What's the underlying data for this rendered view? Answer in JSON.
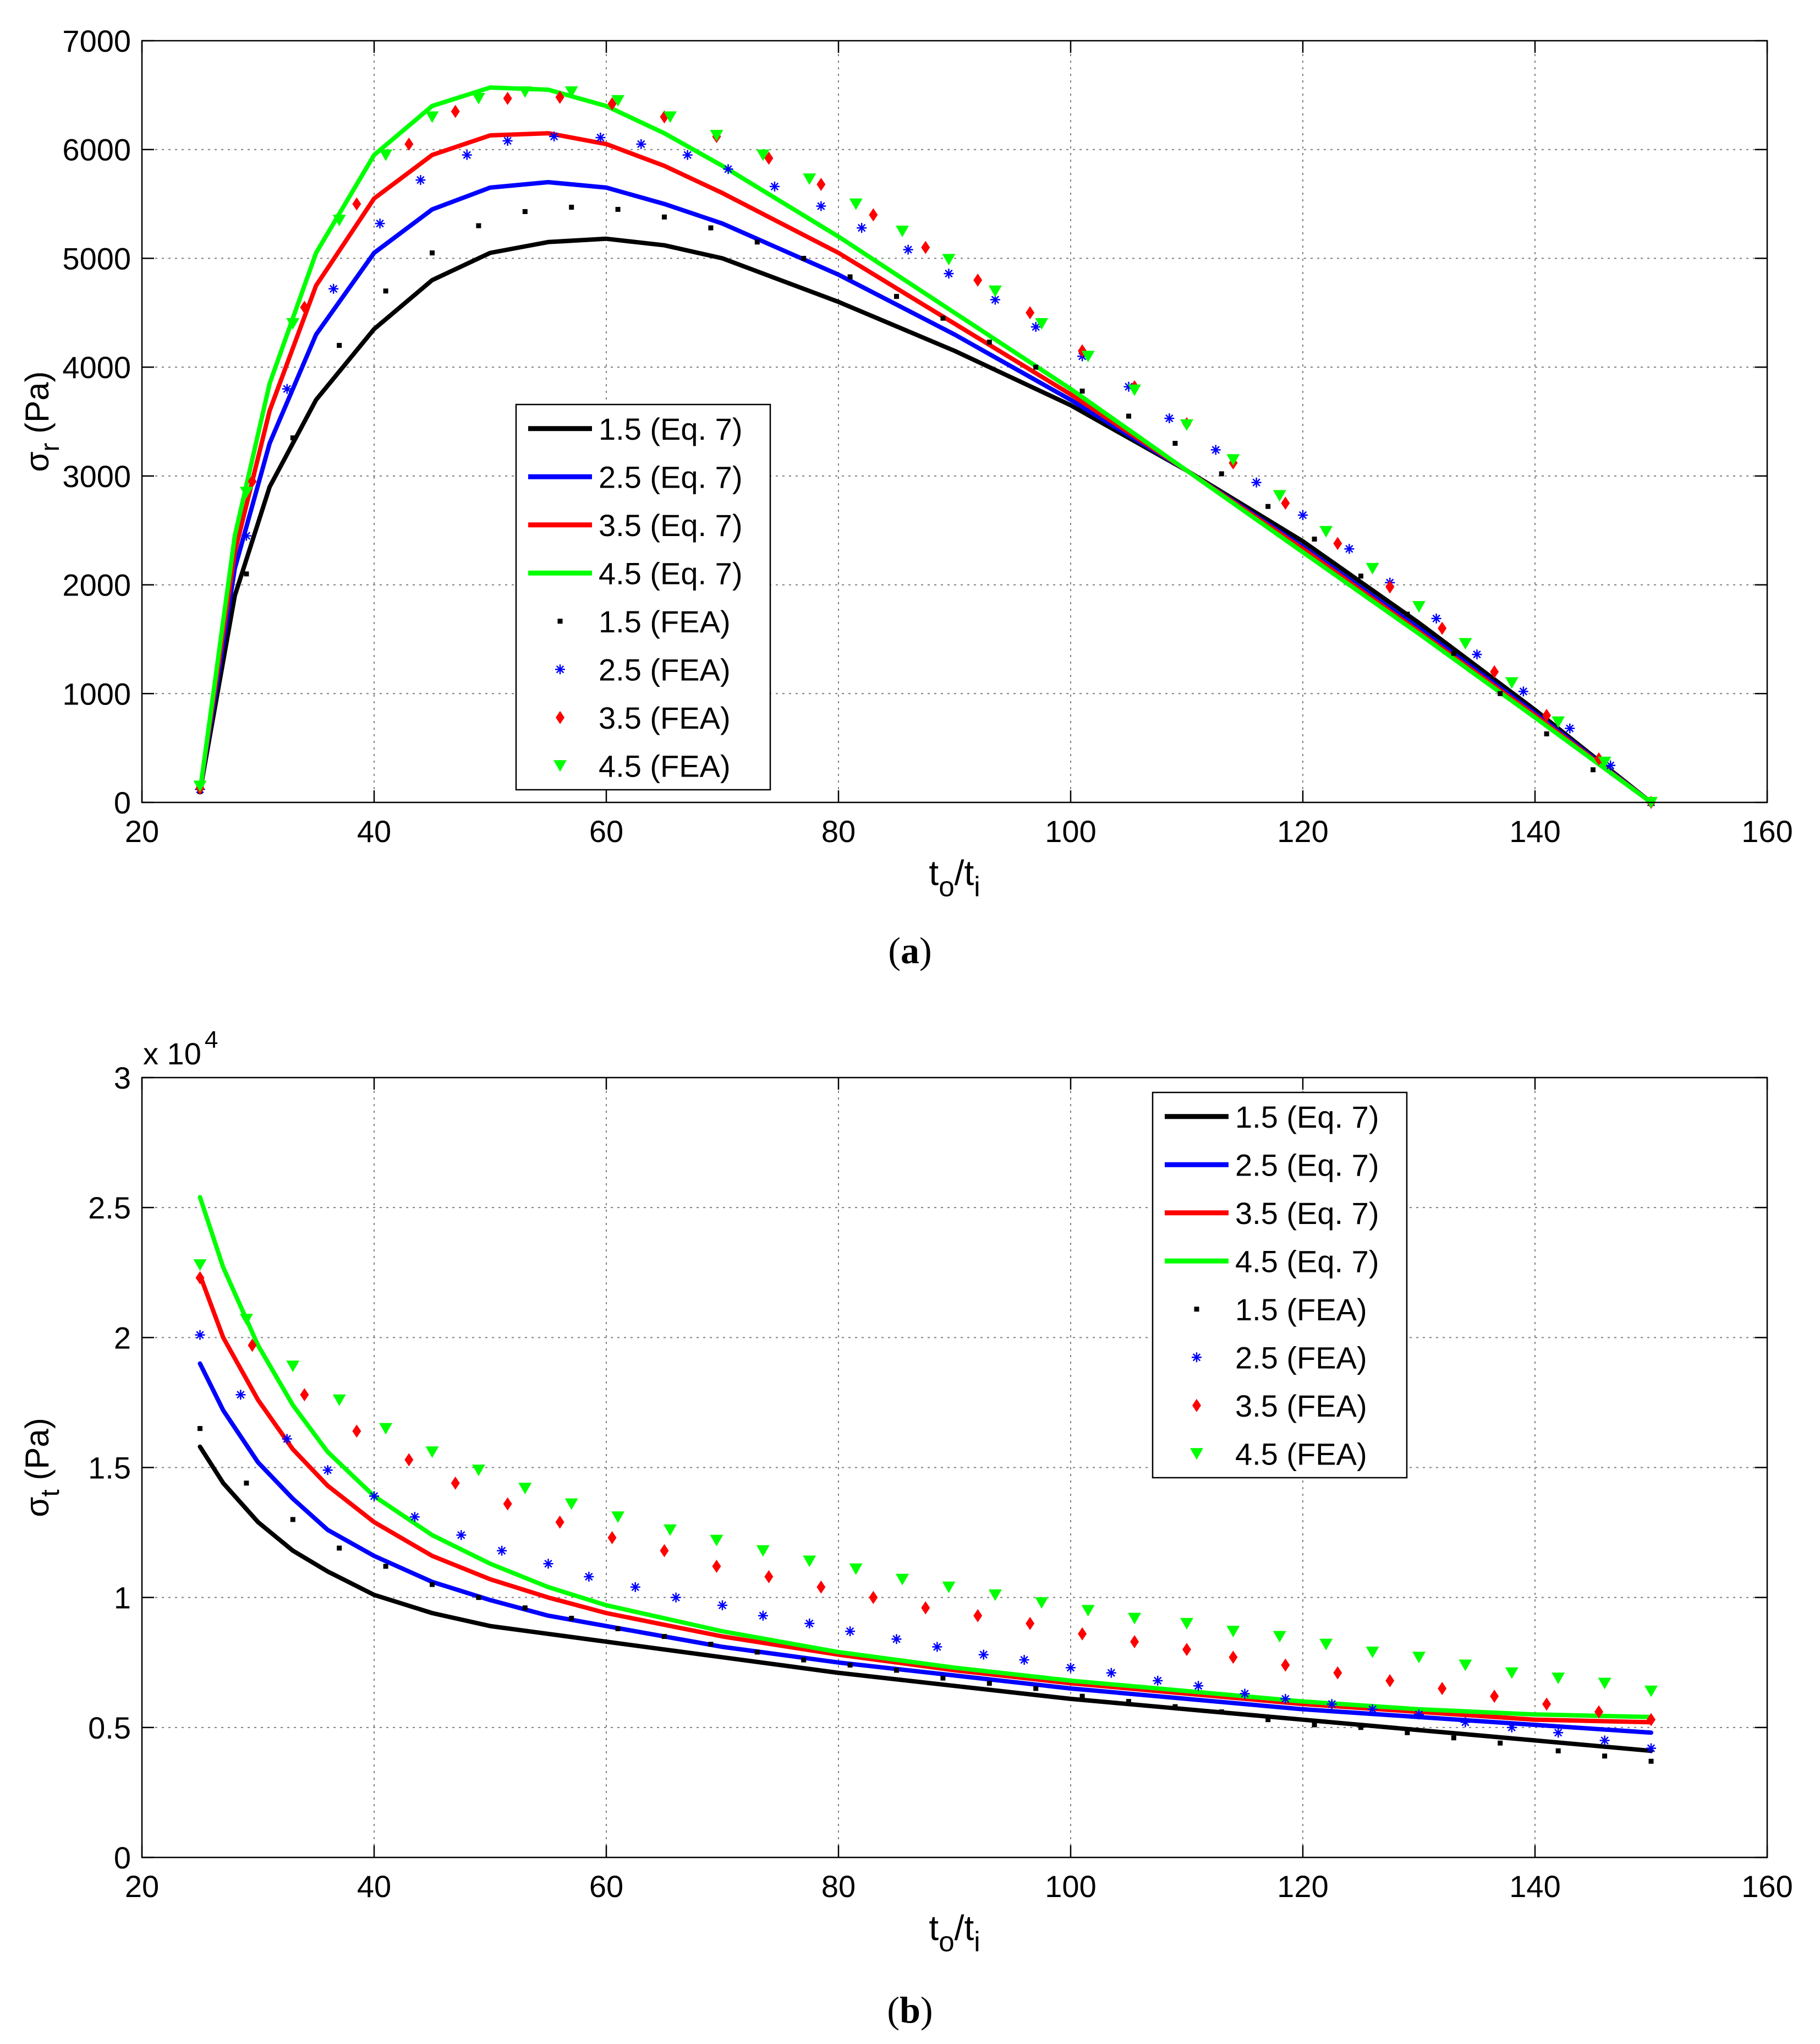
{
  "colors": {
    "black": "#000000",
    "blue": "#0000ff",
    "red": "#ff0000",
    "green": "#00ff00",
    "grid": "#7f7f7f"
  },
  "chart_data": [
    {
      "type": "line",
      "panel_label": "(a)",
      "title": "",
      "xlabel": "t_o/t_i",
      "ylabel": "σ_r (Pa)",
      "xlim": [
        20,
        160
      ],
      "ylim": [
        0,
        7000
      ],
      "xticks": [
        20,
        40,
        60,
        80,
        100,
        120,
        140,
        160
      ],
      "yticks": [
        0,
        1000,
        2000,
        3000,
        4000,
        5000,
        6000,
        7000
      ],
      "xtick_labels": [
        "20",
        "40",
        "60",
        "80",
        "100",
        "120",
        "140",
        "160"
      ],
      "ytick_labels": [
        "0",
        "1000",
        "2000",
        "3000",
        "4000",
        "5000",
        "6000",
        "7000"
      ],
      "grid": true,
      "legend_position": "center-left",
      "series": [
        {
          "name": "1.5 (Eq. 7)",
          "style": "line",
          "color": "#000000",
          "x": [
            25,
            28,
            31,
            35,
            40,
            45,
            50,
            55,
            60,
            65,
            70,
            80,
            90,
            100,
            110,
            120,
            130,
            140,
            150
          ],
          "y": [
            100,
            1900,
            2900,
            3700,
            4350,
            4800,
            5050,
            5150,
            5180,
            5120,
            5000,
            4600,
            4150,
            3650,
            3050,
            2400,
            1650,
            850,
            0
          ]
        },
        {
          "name": "2.5 (Eq. 7)",
          "style": "line",
          "color": "#0000ff",
          "x": [
            25,
            28,
            31,
            35,
            40,
            45,
            50,
            55,
            60,
            65,
            70,
            80,
            90,
            100,
            110,
            120,
            130,
            140,
            150
          ],
          "y": [
            100,
            2150,
            3300,
            4300,
            5050,
            5450,
            5650,
            5700,
            5650,
            5500,
            5320,
            4850,
            4300,
            3700,
            3050,
            2350,
            1600,
            820,
            0
          ]
        },
        {
          "name": "3.5 (Eq. 7)",
          "style": "line",
          "color": "#ff0000",
          "x": [
            25,
            28,
            31,
            35,
            40,
            45,
            50,
            55,
            60,
            65,
            70,
            80,
            90,
            100,
            110,
            120,
            130,
            140,
            150
          ],
          "y": [
            100,
            2300,
            3600,
            4750,
            5550,
            5950,
            6130,
            6150,
            6050,
            5850,
            5600,
            5050,
            4400,
            3750,
            3050,
            2330,
            1570,
            800,
            0
          ]
        },
        {
          "name": "4.5 (Eq. 7)",
          "style": "line",
          "color": "#00ff00",
          "x": [
            25,
            28,
            31,
            35,
            40,
            45,
            50,
            55,
            60,
            65,
            70,
            80,
            90,
            100,
            110,
            120,
            130,
            140,
            150
          ],
          "y": [
            100,
            2450,
            3850,
            5050,
            5950,
            6400,
            6570,
            6550,
            6400,
            6150,
            5850,
            5200,
            4500,
            3800,
            3050,
            2300,
            1550,
            780,
            0
          ]
        },
        {
          "name": "1.5 (FEA)",
          "style": "marker",
          "marker": "dot",
          "color": "#000000",
          "x": [
            25,
            29,
            33,
            37,
            41,
            45,
            49,
            53,
            57,
            61,
            65,
            69,
            73,
            77,
            81,
            85,
            89,
            93,
            97,
            101,
            105,
            109,
            113,
            117,
            121,
            125,
            129,
            133,
            137,
            141,
            145,
            150
          ],
          "y": [
            100,
            2100,
            3350,
            4200,
            4700,
            5050,
            5300,
            5430,
            5470,
            5450,
            5380,
            5280,
            5150,
            5000,
            4830,
            4650,
            4450,
            4230,
            4000,
            3780,
            3550,
            3300,
            3020,
            2720,
            2420,
            2080,
            1730,
            1370,
            1000,
            630,
            300,
            0
          ]
        },
        {
          "name": "2.5 (FEA)",
          "style": "marker",
          "marker": "star",
          "color": "#0000ff",
          "x": [
            25,
            29,
            32.5,
            36.5,
            40.5,
            44,
            48,
            51.5,
            55.5,
            59.5,
            63,
            67,
            70.5,
            74.5,
            78.5,
            82,
            86,
            89.5,
            93.5,
            97,
            101,
            105,
            108.5,
            112.5,
            116,
            120,
            124,
            127.5,
            131.5,
            135,
            139,
            143,
            146.5,
            150
          ],
          "y": [
            120,
            2450,
            3800,
            4720,
            5320,
            5720,
            5950,
            6080,
            6120,
            6110,
            6050,
            5950,
            5820,
            5660,
            5480,
            5280,
            5080,
            4860,
            4620,
            4370,
            4100,
            3820,
            3530,
            3240,
            2940,
            2640,
            2330,
            2020,
            1690,
            1360,
            1020,
            680,
            340,
            0
          ]
        },
        {
          "name": "3.5 (FEA)",
          "style": "marker",
          "marker": "diamond",
          "color": "#ff0000",
          "x": [
            25,
            29.5,
            34,
            38.5,
            43,
            47,
            51.5,
            56,
            60.5,
            65,
            69.5,
            74,
            78.5,
            83,
            87.5,
            92,
            96.5,
            101,
            105.5,
            110,
            114,
            118.5,
            123,
            127.5,
            132,
            136.5,
            141,
            145.5,
            150
          ],
          "y": [
            130,
            2950,
            4550,
            5500,
            6050,
            6350,
            6470,
            6480,
            6420,
            6300,
            6120,
            5920,
            5680,
            5400,
            5100,
            4800,
            4500,
            4150,
            3820,
            3480,
            3120,
            2750,
            2380,
            1980,
            1600,
            1200,
            800,
            400,
            0
          ]
        },
        {
          "name": "4.5 (FEA)",
          "style": "marker",
          "marker": "triangle-down",
          "color": "#00ff00",
          "x": [
            25,
            29,
            33,
            37,
            41,
            45,
            49,
            53,
            57,
            61,
            65.5,
            69.5,
            73.5,
            77.5,
            81.5,
            85.5,
            89.5,
            93.5,
            97.5,
            101.5,
            105.5,
            110,
            114,
            118,
            122,
            126,
            130,
            134,
            138,
            142,
            146,
            150
          ],
          "y": [
            150,
            2850,
            4400,
            5350,
            5950,
            6300,
            6470,
            6530,
            6530,
            6450,
            6300,
            6130,
            5950,
            5730,
            5500,
            5250,
            4990,
            4700,
            4400,
            4100,
            3790,
            3470,
            3150,
            2820,
            2490,
            2150,
            1800,
            1460,
            1100,
            740,
            370,
            0
          ]
        }
      ]
    },
    {
      "type": "line",
      "panel_label": "(b)",
      "title": "",
      "xlabel": "t_o/t_i",
      "ylabel": "σ_t (Pa)",
      "y_multiplier_label": "x 10",
      "y_multiplier_exponent": "4",
      "xlim": [
        20,
        160
      ],
      "ylim": [
        0,
        3
      ],
      "xticks": [
        20,
        40,
        60,
        80,
        100,
        120,
        140,
        160
      ],
      "yticks": [
        0,
        0.5,
        1,
        1.5,
        2,
        2.5,
        3
      ],
      "xtick_labels": [
        "20",
        "40",
        "60",
        "80",
        "100",
        "120",
        "140",
        "160"
      ],
      "ytick_labels": [
        "0",
        "0.5",
        "1",
        "1.5",
        "2",
        "2.5",
        "3"
      ],
      "grid": true,
      "legend_position": "top-right",
      "series": [
        {
          "name": "1.5 (Eq. 7)",
          "style": "line",
          "color": "#000000",
          "x": [
            25,
            27,
            30,
            33,
            36,
            40,
            45,
            50,
            55,
            60,
            70,
            80,
            90,
            100,
            110,
            120,
            130,
            140,
            150
          ],
          "y": [
            1.58,
            1.44,
            1.29,
            1.18,
            1.1,
            1.01,
            0.94,
            0.89,
            0.86,
            0.83,
            0.77,
            0.71,
            0.66,
            0.61,
            0.57,
            0.53,
            0.49,
            0.45,
            0.41
          ]
        },
        {
          "name": "2.5 (Eq. 7)",
          "style": "line",
          "color": "#0000ff",
          "x": [
            25,
            27,
            30,
            33,
            36,
            40,
            45,
            50,
            55,
            60,
            70,
            80,
            90,
            100,
            110,
            120,
            130,
            140,
            150
          ],
          "y": [
            1.9,
            1.72,
            1.52,
            1.38,
            1.26,
            1.16,
            1.06,
            0.99,
            0.93,
            0.89,
            0.81,
            0.75,
            0.7,
            0.65,
            0.61,
            0.57,
            0.54,
            0.51,
            0.48
          ]
        },
        {
          "name": "3.5 (Eq. 7)",
          "style": "line",
          "color": "#ff0000",
          "x": [
            25,
            27,
            30,
            33,
            36,
            40,
            45,
            50,
            55,
            60,
            70,
            80,
            90,
            100,
            110,
            120,
            130,
            140,
            150
          ],
          "y": [
            2.24,
            2.0,
            1.76,
            1.57,
            1.43,
            1.29,
            1.16,
            1.07,
            1.0,
            0.94,
            0.85,
            0.78,
            0.72,
            0.67,
            0.63,
            0.59,
            0.56,
            0.53,
            0.52
          ]
        },
        {
          "name": "4.5 (Eq. 7)",
          "style": "line",
          "color": "#00ff00",
          "x": [
            25,
            27,
            30,
            33,
            36,
            40,
            45,
            50,
            55,
            60,
            70,
            80,
            90,
            100,
            110,
            120,
            130,
            140,
            150
          ],
          "y": [
            2.54,
            2.27,
            1.97,
            1.74,
            1.56,
            1.39,
            1.24,
            1.13,
            1.04,
            0.97,
            0.87,
            0.79,
            0.73,
            0.68,
            0.64,
            0.6,
            0.57,
            0.55,
            0.54
          ]
        },
        {
          "name": "1.5 (FEA)",
          "style": "marker",
          "marker": "dot",
          "color": "#000000",
          "x": [
            25,
            29,
            33,
            37,
            41,
            45,
            49,
            53,
            57,
            61,
            65,
            69,
            73,
            77,
            81,
            85,
            89,
            93,
            97,
            101,
            105,
            109,
            113,
            117,
            121,
            125,
            129,
            133,
            137,
            142,
            146,
            150
          ],
          "y": [
            1.65,
            1.44,
            1.3,
            1.19,
            1.12,
            1.05,
            1.0,
            0.96,
            0.92,
            0.88,
            0.85,
            0.82,
            0.79,
            0.76,
            0.74,
            0.72,
            0.69,
            0.67,
            0.65,
            0.62,
            0.6,
            0.58,
            0.56,
            0.53,
            0.51,
            0.5,
            0.48,
            0.46,
            0.44,
            0.41,
            0.39,
            0.37
          ]
        },
        {
          "name": "2.5 (FEA)",
          "style": "marker",
          "marker": "star",
          "color": "#0000ff",
          "x": [
            25,
            28.5,
            32.5,
            36,
            40,
            43.5,
            47.5,
            51,
            55,
            58.5,
            62.5,
            66,
            70,
            73.5,
            77.5,
            81,
            85,
            88.5,
            92.5,
            96,
            100,
            103.5,
            107.5,
            111,
            115,
            118.5,
            122.5,
            126,
            130,
            134,
            138,
            142,
            146,
            150
          ],
          "y": [
            2.01,
            1.78,
            1.61,
            1.49,
            1.39,
            1.31,
            1.24,
            1.18,
            1.13,
            1.08,
            1.04,
            1.0,
            0.97,
            0.93,
            0.9,
            0.87,
            0.84,
            0.81,
            0.78,
            0.76,
            0.73,
            0.71,
            0.68,
            0.66,
            0.63,
            0.61,
            0.59,
            0.57,
            0.55,
            0.52,
            0.5,
            0.48,
            0.45,
            0.42
          ]
        },
        {
          "name": "3.5 (FEA)",
          "style": "marker",
          "marker": "diamond",
          "color": "#ff0000",
          "x": [
            25,
            29.5,
            34,
            38.5,
            43,
            47,
            51.5,
            56,
            60.5,
            65,
            69.5,
            74,
            78.5,
            83,
            87.5,
            92,
            96.5,
            101,
            105.5,
            110,
            114,
            118.5,
            123,
            127.5,
            132,
            136.5,
            141,
            145.5,
            150
          ],
          "y": [
            2.23,
            1.97,
            1.78,
            1.64,
            1.53,
            1.44,
            1.36,
            1.29,
            1.23,
            1.18,
            1.12,
            1.08,
            1.04,
            1.0,
            0.96,
            0.93,
            0.9,
            0.86,
            0.83,
            0.8,
            0.77,
            0.74,
            0.71,
            0.68,
            0.65,
            0.62,
            0.59,
            0.56,
            0.53
          ]
        },
        {
          "name": "4.5 (FEA)",
          "style": "marker",
          "marker": "triangle-down",
          "color": "#00ff00",
          "x": [
            25,
            29,
            33,
            37,
            41,
            45,
            49,
            53,
            57,
            61,
            65.5,
            69.5,
            73.5,
            77.5,
            81.5,
            85.5,
            89.5,
            93.5,
            97.5,
            101.5,
            105.5,
            110,
            114,
            118,
            122,
            126,
            130,
            134,
            138,
            142,
            146,
            150
          ],
          "y": [
            2.28,
            2.07,
            1.89,
            1.76,
            1.65,
            1.56,
            1.49,
            1.42,
            1.36,
            1.31,
            1.26,
            1.22,
            1.18,
            1.14,
            1.11,
            1.07,
            1.04,
            1.01,
            0.98,
            0.95,
            0.92,
            0.9,
            0.87,
            0.85,
            0.82,
            0.79,
            0.77,
            0.74,
            0.71,
            0.69,
            0.67,
            0.64
          ]
        }
      ]
    }
  ]
}
